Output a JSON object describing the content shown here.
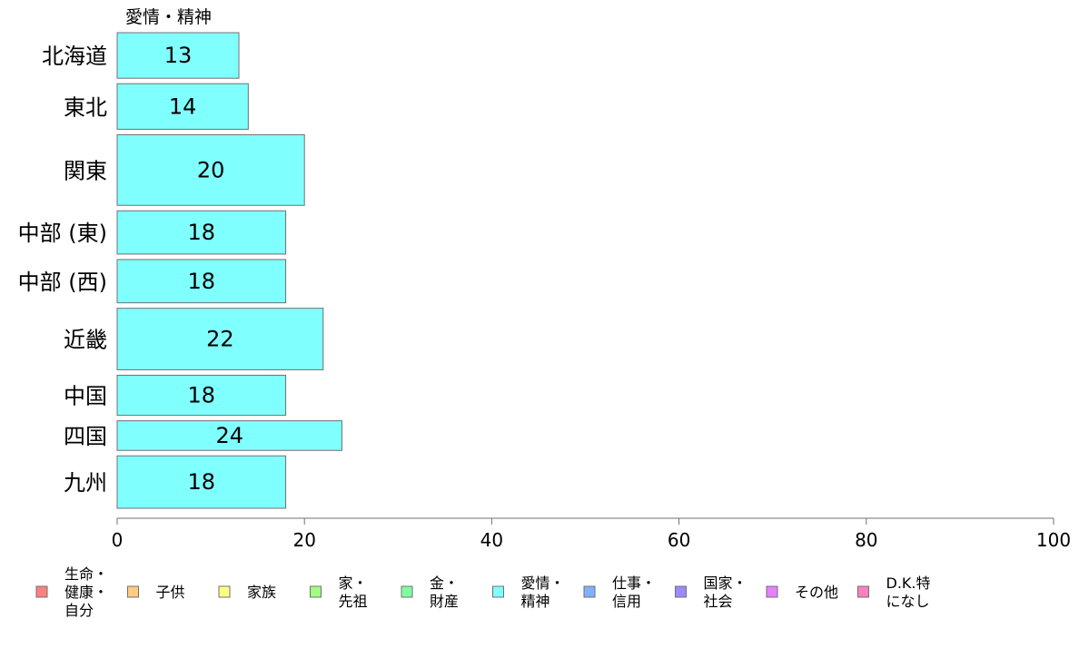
{
  "chart_data": {
    "type": "bar",
    "orientation": "horizontal",
    "series_title": "愛情・精神",
    "categories": [
      "北海道",
      "東北",
      "関東",
      "中部 (東)",
      "中部 (西)",
      "近畿",
      "中国",
      "四国",
      "九州"
    ],
    "series": [
      {
        "name": "愛情・精神",
        "color": "#80ffff",
        "values": [
          13,
          14,
          20,
          18,
          18,
          22,
          18,
          24,
          18
        ]
      }
    ],
    "value_labels": [
      "13",
      "14",
      "20",
      "18",
      "18",
      "22",
      "18",
      "24",
      "18"
    ],
    "relative_widths": [
      1.0,
      1.0,
      1.55,
      0.95,
      0.95,
      1.35,
      0.88,
      0.65,
      1.15
    ],
    "xlim": [
      0,
      100
    ],
    "x_ticks": [
      0,
      20,
      40,
      60,
      80,
      100
    ],
    "grid": false,
    "legend_position": "bottom",
    "legend": [
      {
        "lines": [
          "生命・",
          "健康・",
          "自分"
        ],
        "color": "#ff8080"
      },
      {
        "lines": [
          "子供"
        ],
        "color": "#ffcc80"
      },
      {
        "lines": [
          "家族"
        ],
        "color": "#ffff80"
      },
      {
        "lines": [
          "家・",
          "先祖"
        ],
        "color": "#a0ff80"
      },
      {
        "lines": [
          "金・",
          "財産"
        ],
        "color": "#80ffa0"
      },
      {
        "lines": [
          "愛情・",
          "精神"
        ],
        "color": "#80ffff"
      },
      {
        "lines": [
          "仕事・",
          "信用"
        ],
        "color": "#80b0ff"
      },
      {
        "lines": [
          "国家・",
          "社会"
        ],
        "color": "#9a8cff"
      },
      {
        "lines": [
          "その他"
        ],
        "color": "#e680ff"
      },
      {
        "lines": [
          "D.K.特",
          "になし"
        ],
        "color": "#ff80c0"
      }
    ]
  }
}
